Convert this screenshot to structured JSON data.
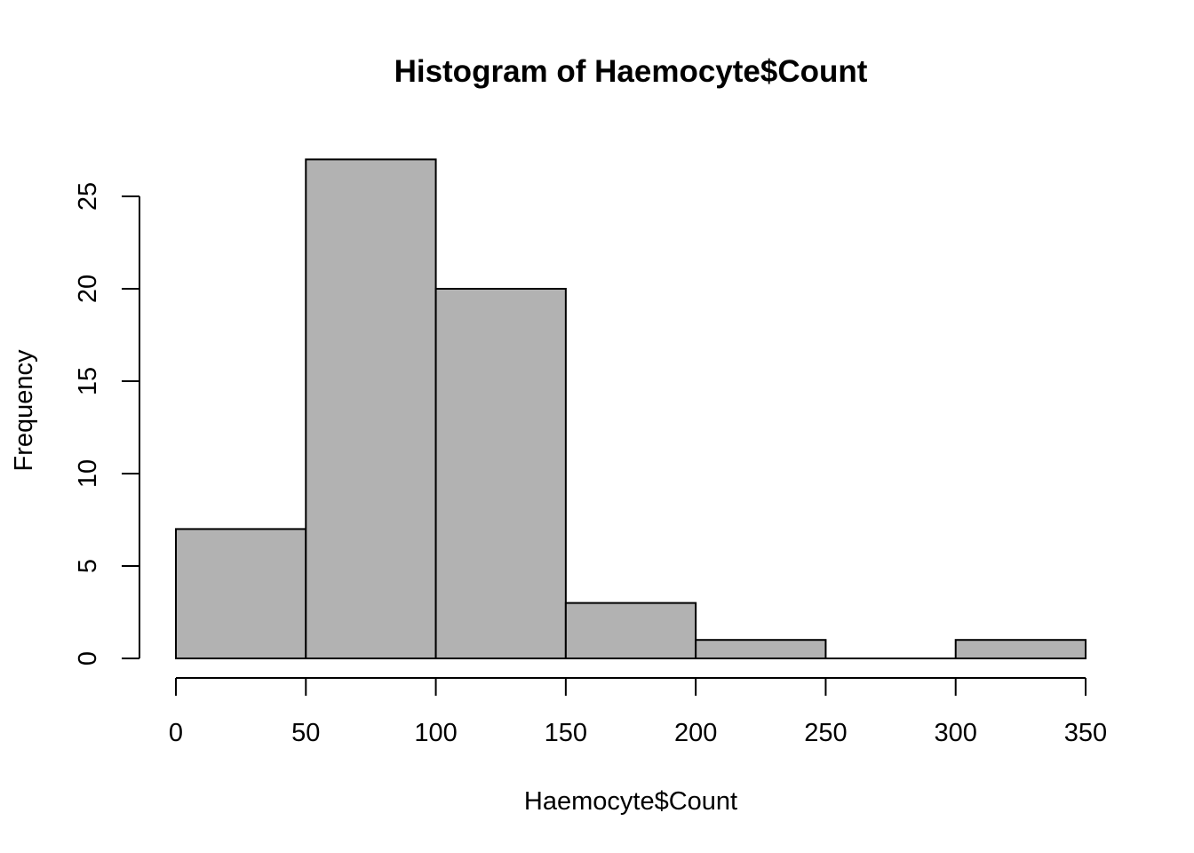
{
  "chart_data": {
    "type": "bar",
    "title": "Histogram of Haemocyte$Count",
    "xlabel": "Haemocyte$Count",
    "ylabel": "Frequency",
    "bins": [
      {
        "start": 0,
        "end": 50,
        "count": 7
      },
      {
        "start": 50,
        "end": 100,
        "count": 27
      },
      {
        "start": 100,
        "end": 150,
        "count": 20
      },
      {
        "start": 150,
        "end": 200,
        "count": 3
      },
      {
        "start": 200,
        "end": 250,
        "count": 1
      },
      {
        "start": 250,
        "end": 300,
        "count": 0
      },
      {
        "start": 300,
        "end": 350,
        "count": 1
      }
    ],
    "xlim": [
      0,
      350
    ],
    "ylim": [
      0,
      27
    ],
    "x_ticks": [
      "0",
      "50",
      "100",
      "150",
      "200",
      "250",
      "300",
      "350"
    ],
    "y_ticks": [
      "0",
      "5",
      "10",
      "15",
      "20",
      "25"
    ],
    "grid": false,
    "bar_color": "#b2b2b2",
    "edge_color": "#000000"
  }
}
